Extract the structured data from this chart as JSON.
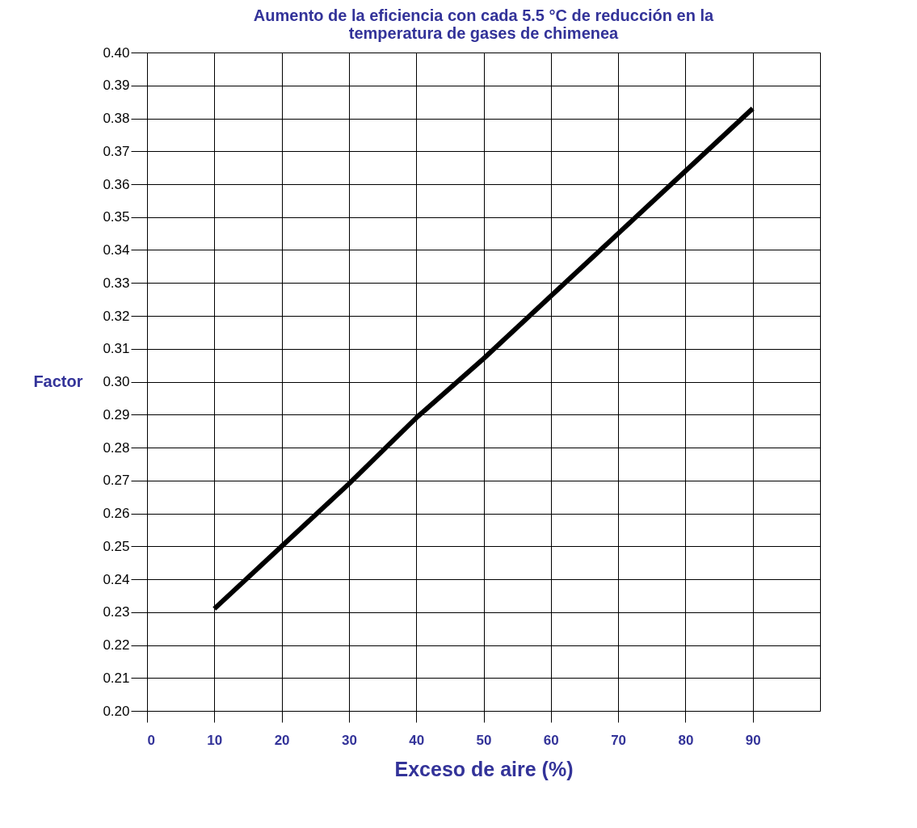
{
  "chart_data": {
    "type": "line",
    "title": [
      "Aumento de la eficiencia con cada 5.5 °C de reducción en la",
      "temperatura de gases de chimenea"
    ],
    "xlabel": "Exceso de aire (%)",
    "ylabel": "Factor",
    "x": [
      10,
      20,
      30,
      40,
      50,
      60,
      70,
      80,
      90
    ],
    "series": [
      {
        "color": "#000000",
        "values": [
          0.231,
          0.25,
          0.269,
          0.289,
          0.307,
          0.326,
          0.345,
          0.364,
          0.383
        ]
      }
    ],
    "xlim": [
      0,
      100
    ],
    "xticks": [
      0,
      10,
      20,
      30,
      40,
      50,
      60,
      70,
      80,
      90
    ],
    "ylim": [
      0.2,
      0.4
    ],
    "yticks": [
      {
        "value": 0.2,
        "label": "0.20"
      },
      0.21,
      0.22,
      0.23,
      0.24,
      0.25,
      0.26,
      0.27,
      0.28,
      0.29,
      {
        "value": 0.3,
        "label": "0.30"
      },
      0.31,
      0.32,
      0.33,
      0.34,
      0.35,
      0.36,
      0.37,
      0.38,
      0.39,
      {
        "value": 0.4,
        "label": "0.40"
      }
    ],
    "grid": true,
    "marker": "none",
    "line_style": "solid"
  }
}
